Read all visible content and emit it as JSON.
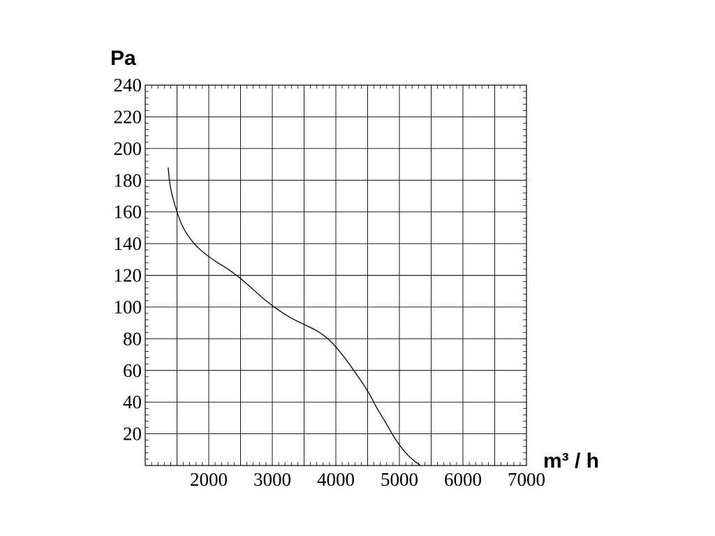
{
  "chart_data": {
    "type": "line",
    "title": "",
    "xlabel": "m³ / h",
    "ylabel": "Pa",
    "xlim": [
      1000,
      7000
    ],
    "ylim": [
      0,
      240
    ],
    "x_ticks": [
      2000,
      3000,
      4000,
      5000,
      6000,
      7000
    ],
    "y_ticks": [
      20,
      40,
      60,
      80,
      100,
      120,
      140,
      160,
      180,
      200,
      220,
      240
    ],
    "grid": true,
    "series": [
      {
        "x": [
          1360,
          1400,
          1500,
          1600,
          1750,
          1900,
          2100,
          2300,
          2500,
          2700,
          2900,
          3100,
          3300,
          3500,
          3700,
          3900,
          4100,
          4300,
          4500,
          4650,
          4800,
          4900,
          5000,
          5100,
          5200,
          5330
        ],
        "y": [
          188,
          175,
          160,
          150,
          141,
          135,
          129,
          124,
          118,
          111,
          104,
          98,
          93,
          89,
          85,
          79,
          70,
          59,
          47,
          36,
          26,
          19,
          13,
          8,
          4,
          0
        ]
      }
    ]
  }
}
